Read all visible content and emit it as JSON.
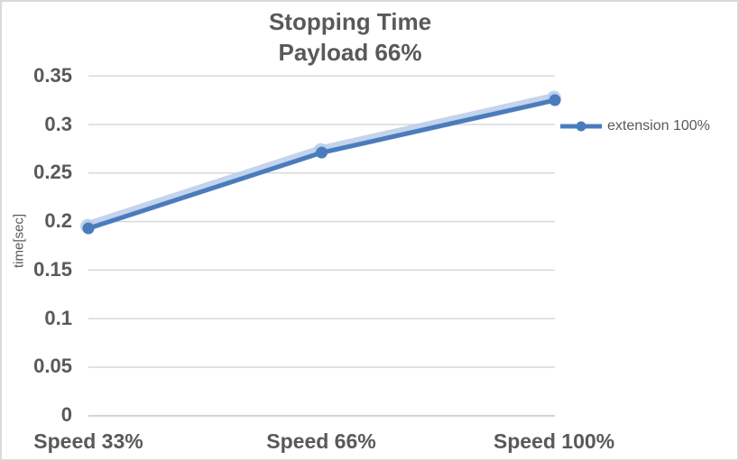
{
  "chart": {
    "title_line1": "Stopping Time",
    "title_line2": "Payload 66%",
    "y_axis_title": "time[sec]",
    "legend_label": "extension 100%"
  },
  "chart_data": {
    "type": "line",
    "title": "Stopping Time\nPayload 66%",
    "xlabel": "",
    "ylabel": "time[sec]",
    "categories": [
      "Speed 33%",
      "Speed 66%",
      "Speed 100%"
    ],
    "series": [
      {
        "name": "extension 100%",
        "values": [
          0.193,
          0.271,
          0.325
        ]
      }
    ],
    "ylim": [
      0,
      0.35
    ],
    "yticks": [
      0,
      0.05,
      0.1,
      0.15,
      0.2,
      0.25,
      0.3,
      0.35
    ],
    "grid": true,
    "legend_position": "right",
    "marker": "circle",
    "colors": {
      "series": "#4a7cbd",
      "series_glow": "#b9cde9",
      "gridline": "#d9d9d9",
      "axis_line": "#d2d2d2",
      "text": "#595959",
      "border": "#d9d9d9",
      "background": "#ffffff"
    }
  }
}
